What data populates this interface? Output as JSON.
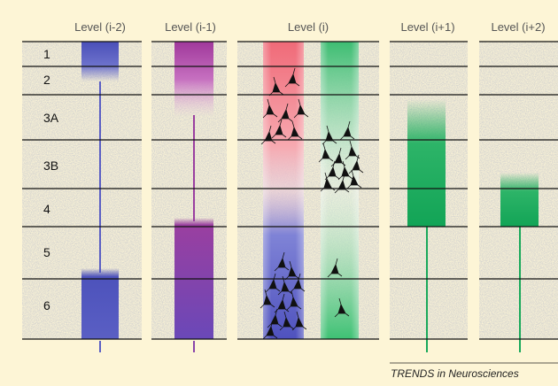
{
  "columns": [
    "Level (i-2)",
    "Level (i-1)",
    "Level (i)",
    "Level (i+1)",
    "Level (i+2)"
  ],
  "layers": [
    "1",
    "2",
    "3A",
    "3B",
    "4",
    "5",
    "6"
  ],
  "footer": "TRENDS in Neurosciences"
}
